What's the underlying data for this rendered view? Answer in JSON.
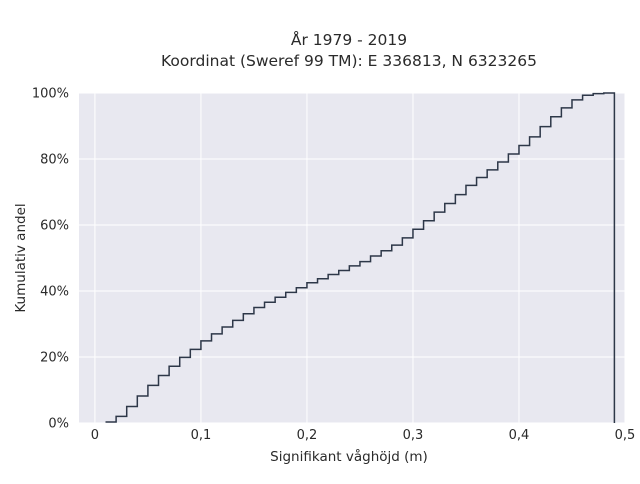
{
  "chart_data": {
    "type": "line",
    "step": "post",
    "title_line1": "År 1979 - 2019",
    "title_line2": "Koordinat (Sweref 99 TM): E 336813, N 6323265",
    "xlabel": "Signifikant våghöjd (m)",
    "ylabel": "Kumulativ andel",
    "xlim": [
      -0.015,
      0.5
    ],
    "ylim": [
      0,
      100
    ],
    "x_ticks": [
      0,
      0.1,
      0.2,
      0.3,
      0.4,
      0.5
    ],
    "x_tick_labels": [
      "0",
      "0,1",
      "0,2",
      "0,3",
      "0,4",
      "0,5"
    ],
    "y_ticks": [
      0,
      20,
      40,
      60,
      80,
      100
    ],
    "y_tick_labels": [
      "0%",
      "20%",
      "40%",
      "60%",
      "80%",
      "100%"
    ],
    "grid": true,
    "background": "#e8e8f0",
    "grid_color": "#ffffff",
    "line_color": "#2d3748",
    "series": [
      {
        "x": [
          0.01,
          0.02,
          0.03,
          0.04,
          0.05,
          0.06,
          0.07,
          0.08,
          0.09,
          0.1,
          0.11,
          0.12,
          0.13,
          0.14,
          0.15,
          0.16,
          0.17,
          0.18,
          0.19,
          0.2,
          0.21,
          0.22,
          0.23,
          0.24,
          0.25,
          0.26,
          0.27,
          0.28,
          0.29,
          0.3,
          0.31,
          0.32,
          0.33,
          0.34,
          0.35,
          0.36,
          0.37,
          0.38,
          0.39,
          0.4,
          0.41,
          0.42,
          0.43,
          0.44,
          0.45,
          0.46,
          0.47,
          0.48,
          0.49
        ],
        "y": [
          0.3,
          2.0,
          5.0,
          8.2,
          11.4,
          14.4,
          17.2,
          19.9,
          22.3,
          24.9,
          27.0,
          29.1,
          31.1,
          33.1,
          35.0,
          36.6,
          38.1,
          39.6,
          41.0,
          42.5,
          43.7,
          45.0,
          46.2,
          47.6,
          48.9,
          50.6,
          52.2,
          53.9,
          56.1,
          58.7,
          61.3,
          63.9,
          66.5,
          69.2,
          72.0,
          74.4,
          76.7,
          79.1,
          81.5,
          84.1,
          86.7,
          89.8,
          92.8,
          95.5,
          97.9,
          99.3,
          99.8,
          100,
          0
        ]
      }
    ]
  }
}
